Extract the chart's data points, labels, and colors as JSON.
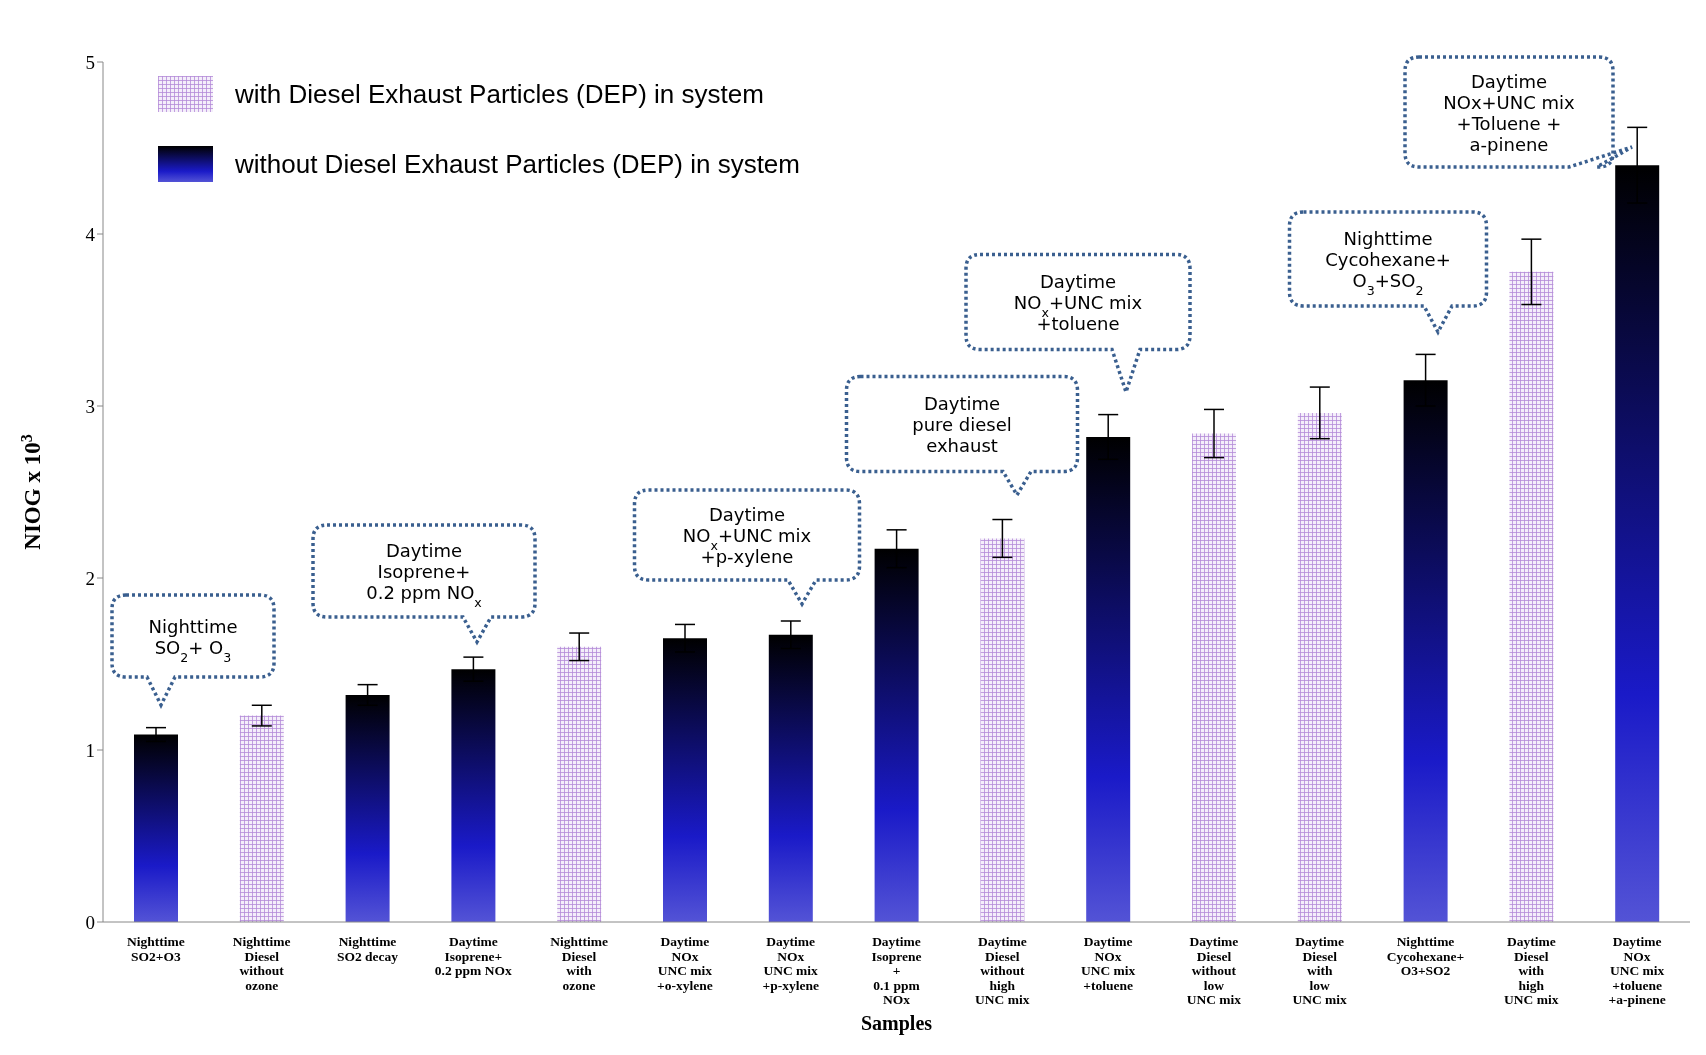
{
  "chart_data": {
    "type": "bar",
    "stacked": true,
    "xlabel": "Samples",
    "ylabel": "NIOG x 10$^{3}$",
    "legend": "top left",
    "categories": [
      "Nighttime\nSO2+O3",
      "Nighttime\nDiesel\nwithout\nozone",
      "Nighttime\nSO2 decay",
      "Daytime\nIsoprene+\n0.2 ppm NOx",
      "Nighttime\nDiesel\nwith\nozone",
      "Daytime\nNOx\nUNC mix\n+o-xylene",
      "Daytime\nNOx\nUNC mix\n+p-xylene",
      "Daytime\nIsoprene\n+\n0.1 ppm\nNOx",
      "Daytime\nDiesel\nwithout\nhigh\nUNC mix",
      "Daytime\nNOx\nUNC mix\n+toluene",
      "Daytime\nDiesel\nwithout\nlow\nUNC mix",
      "Daytime\nDiesel\nwith\nlow\nUNC mix",
      "Nighttime\nCycohexane+\nO3+SO2",
      "Daytime\nDiesel\nwith\nhigh\nUNC mix",
      "Daytime\nNOx\nUNC mix\n+toluene\n+a-pinene"
    ],
    "series": [
      {
        "name": "with Diesel Exhaust Particles (DEP) in system",
        "color": "#b48ad8",
        "values": [
          null,
          1.2,
          null,
          null,
          1.6,
          null,
          null,
          null,
          2.23,
          null,
          2.84,
          2.96,
          null,
          3.78,
          null
        ],
        "errors": [
          null,
          0.06,
          null,
          null,
          0.08,
          null,
          null,
          null,
          0.11,
          null,
          0.14,
          0.15,
          null,
          0.19,
          null
        ]
      },
      {
        "name": "without Diesel Exhaust Particles (DEP) in system",
        "color": "#1a1ac8",
        "values": [
          1.09,
          null,
          1.32,
          1.47,
          null,
          1.65,
          1.67,
          2.17,
          null,
          2.82,
          null,
          null,
          3.15,
          null,
          4.4
        ],
        "errors": [
          0.04,
          null,
          0.06,
          0.07,
          null,
          0.08,
          0.08,
          0.11,
          null,
          0.13,
          null,
          null,
          0.15,
          null,
          0.22
        ]
      }
    ],
    "ylim": [
      0,
      5
    ],
    "yticks": [
      0,
      1,
      2,
      3,
      4,
      5
    ],
    "annotations": [
      "Nighttime\nSO$_{2}$+ O$_{3}$",
      "Daytime\nIsoprene+\n0.2 ppm NO$_{x}$",
      "Daytime\nNO$_{x}$+UNC mix\n+p-xylene",
      "Daytime\npure diesel\nexhaust",
      "Daytime\nNO$_{x}$+UNC mix\n+toluene",
      "Nighttime\nCycohexane+\nO$_{3}$+SO$_{2}$",
      "Daytime\nNOx+UNC mix\n+Toluene +\na-pinene"
    ]
  }
}
